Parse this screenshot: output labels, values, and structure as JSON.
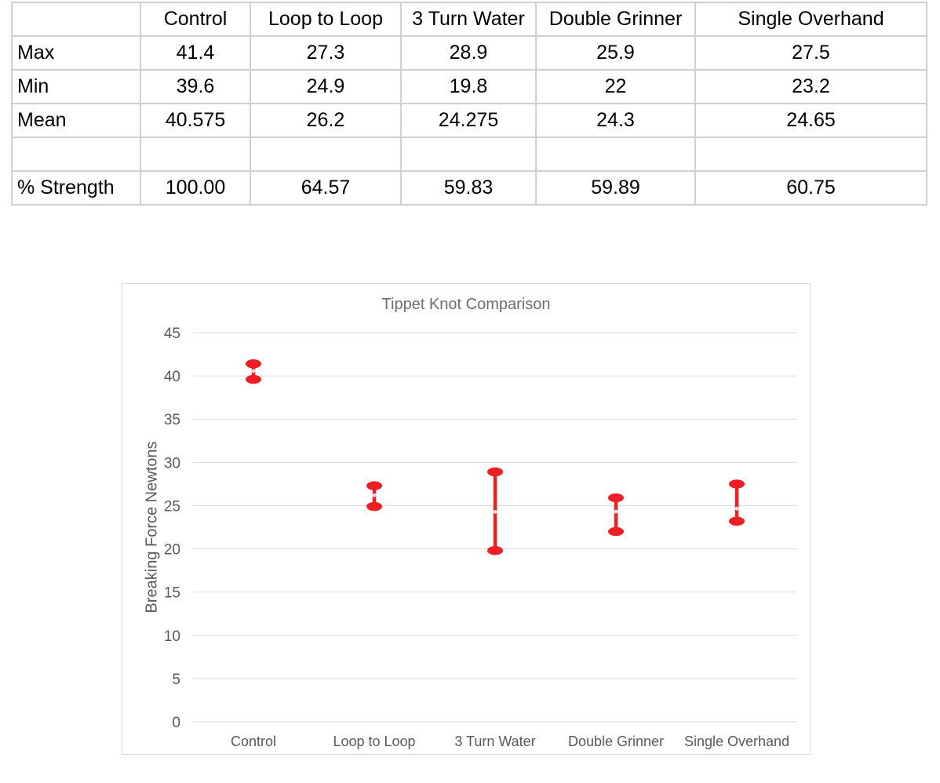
{
  "table": {
    "columns": [
      "",
      "Control",
      "Loop to Loop",
      "3 Turn Water",
      "Double Grinner",
      "Single Overhand"
    ],
    "rows": [
      {
        "label": "Max",
        "values": [
          "41.4",
          "27.3",
          "28.9",
          "25.9",
          "27.5"
        ]
      },
      {
        "label": "Min",
        "values": [
          "39.6",
          "24.9",
          "19.8",
          "22",
          "23.2"
        ]
      },
      {
        "label": "Mean",
        "values": [
          "40.575",
          "26.2",
          "24.275",
          "24.3",
          "24.65"
        ]
      },
      {
        "label": "",
        "values": [
          "",
          "",
          "",
          "",
          ""
        ]
      },
      {
        "label": "% Strength",
        "values": [
          "100.00",
          "64.57",
          "59.83",
          "59.89",
          "60.75"
        ]
      }
    ]
  },
  "chart_data": {
    "type": "hilo-stock",
    "title": "Tippet Knot Comparison",
    "ylabel": "Breaking Force Newtons",
    "categories": [
      "Control",
      "Loop to Loop",
      "3 Turn Water",
      "Double Grinner",
      "Single Overhand"
    ],
    "series": [
      {
        "name": "Max",
        "values": [
          41.4,
          27.3,
          28.9,
          25.9,
          27.5
        ]
      },
      {
        "name": "Min",
        "values": [
          39.6,
          24.9,
          19.8,
          22,
          23.2
        ]
      },
      {
        "name": "Mean",
        "values": [
          40.575,
          26.2,
          24.275,
          24.3,
          24.65
        ]
      }
    ],
    "ylim": [
      0,
      45
    ],
    "ytick_step": 5,
    "grid": true,
    "legend": "none"
  },
  "colors": {
    "marker": "#ed1e24",
    "mean_dot": "#f3dcda",
    "gridline": "#d9d9d9",
    "axis_text": "#595959",
    "title_text": "#6d6d6d",
    "table_border": "#d0d0d0"
  }
}
